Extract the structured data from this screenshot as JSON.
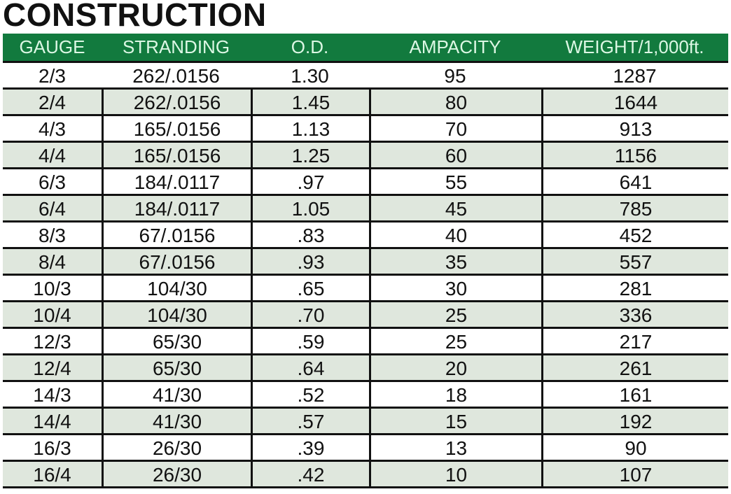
{
  "title": "CONSTRUCTION",
  "colors": {
    "header_bg": "#127a3e",
    "header_text": "#dcf7e4",
    "shaded_row": "#dfe7dd"
  },
  "columns": [
    "GAUGE",
    "STRANDING",
    "O.D.",
    "AMPACITY",
    "WEIGHT/1,000ft."
  ],
  "rows": [
    [
      "2/3",
      "262/.0156",
      "1.30",
      "95",
      "1287"
    ],
    [
      "2/4",
      "262/.0156",
      "1.45",
      "80",
      "1644"
    ],
    [
      "4/3",
      "165/.0156",
      "1.13",
      "70",
      "913"
    ],
    [
      "4/4",
      "165/.0156",
      "1.25",
      "60",
      "1156"
    ],
    [
      "6/3",
      "184/.0117",
      ".97",
      "55",
      "641"
    ],
    [
      "6/4",
      "184/.0117",
      "1.05",
      "45",
      "785"
    ],
    [
      "8/3",
      "67/.0156",
      ".83",
      "40",
      "452"
    ],
    [
      "8/4",
      "67/.0156",
      ".93",
      "35",
      "557"
    ],
    [
      "10/3",
      "104/30",
      ".65",
      "30",
      "281"
    ],
    [
      "10/4",
      "104/30",
      ".70",
      "25",
      "336"
    ],
    [
      "12/3",
      "65/30",
      ".59",
      "25",
      "217"
    ],
    [
      "12/4",
      "65/30",
      ".64",
      "20",
      "261"
    ],
    [
      "14/3",
      "41/30",
      ".52",
      "18",
      "161"
    ],
    [
      "14/4",
      "41/30",
      ".57",
      "15",
      "192"
    ],
    [
      "16/3",
      "26/30",
      ".39",
      "13",
      "90"
    ],
    [
      "16/4",
      "26/30",
      ".42",
      "10",
      "107"
    ]
  ]
}
